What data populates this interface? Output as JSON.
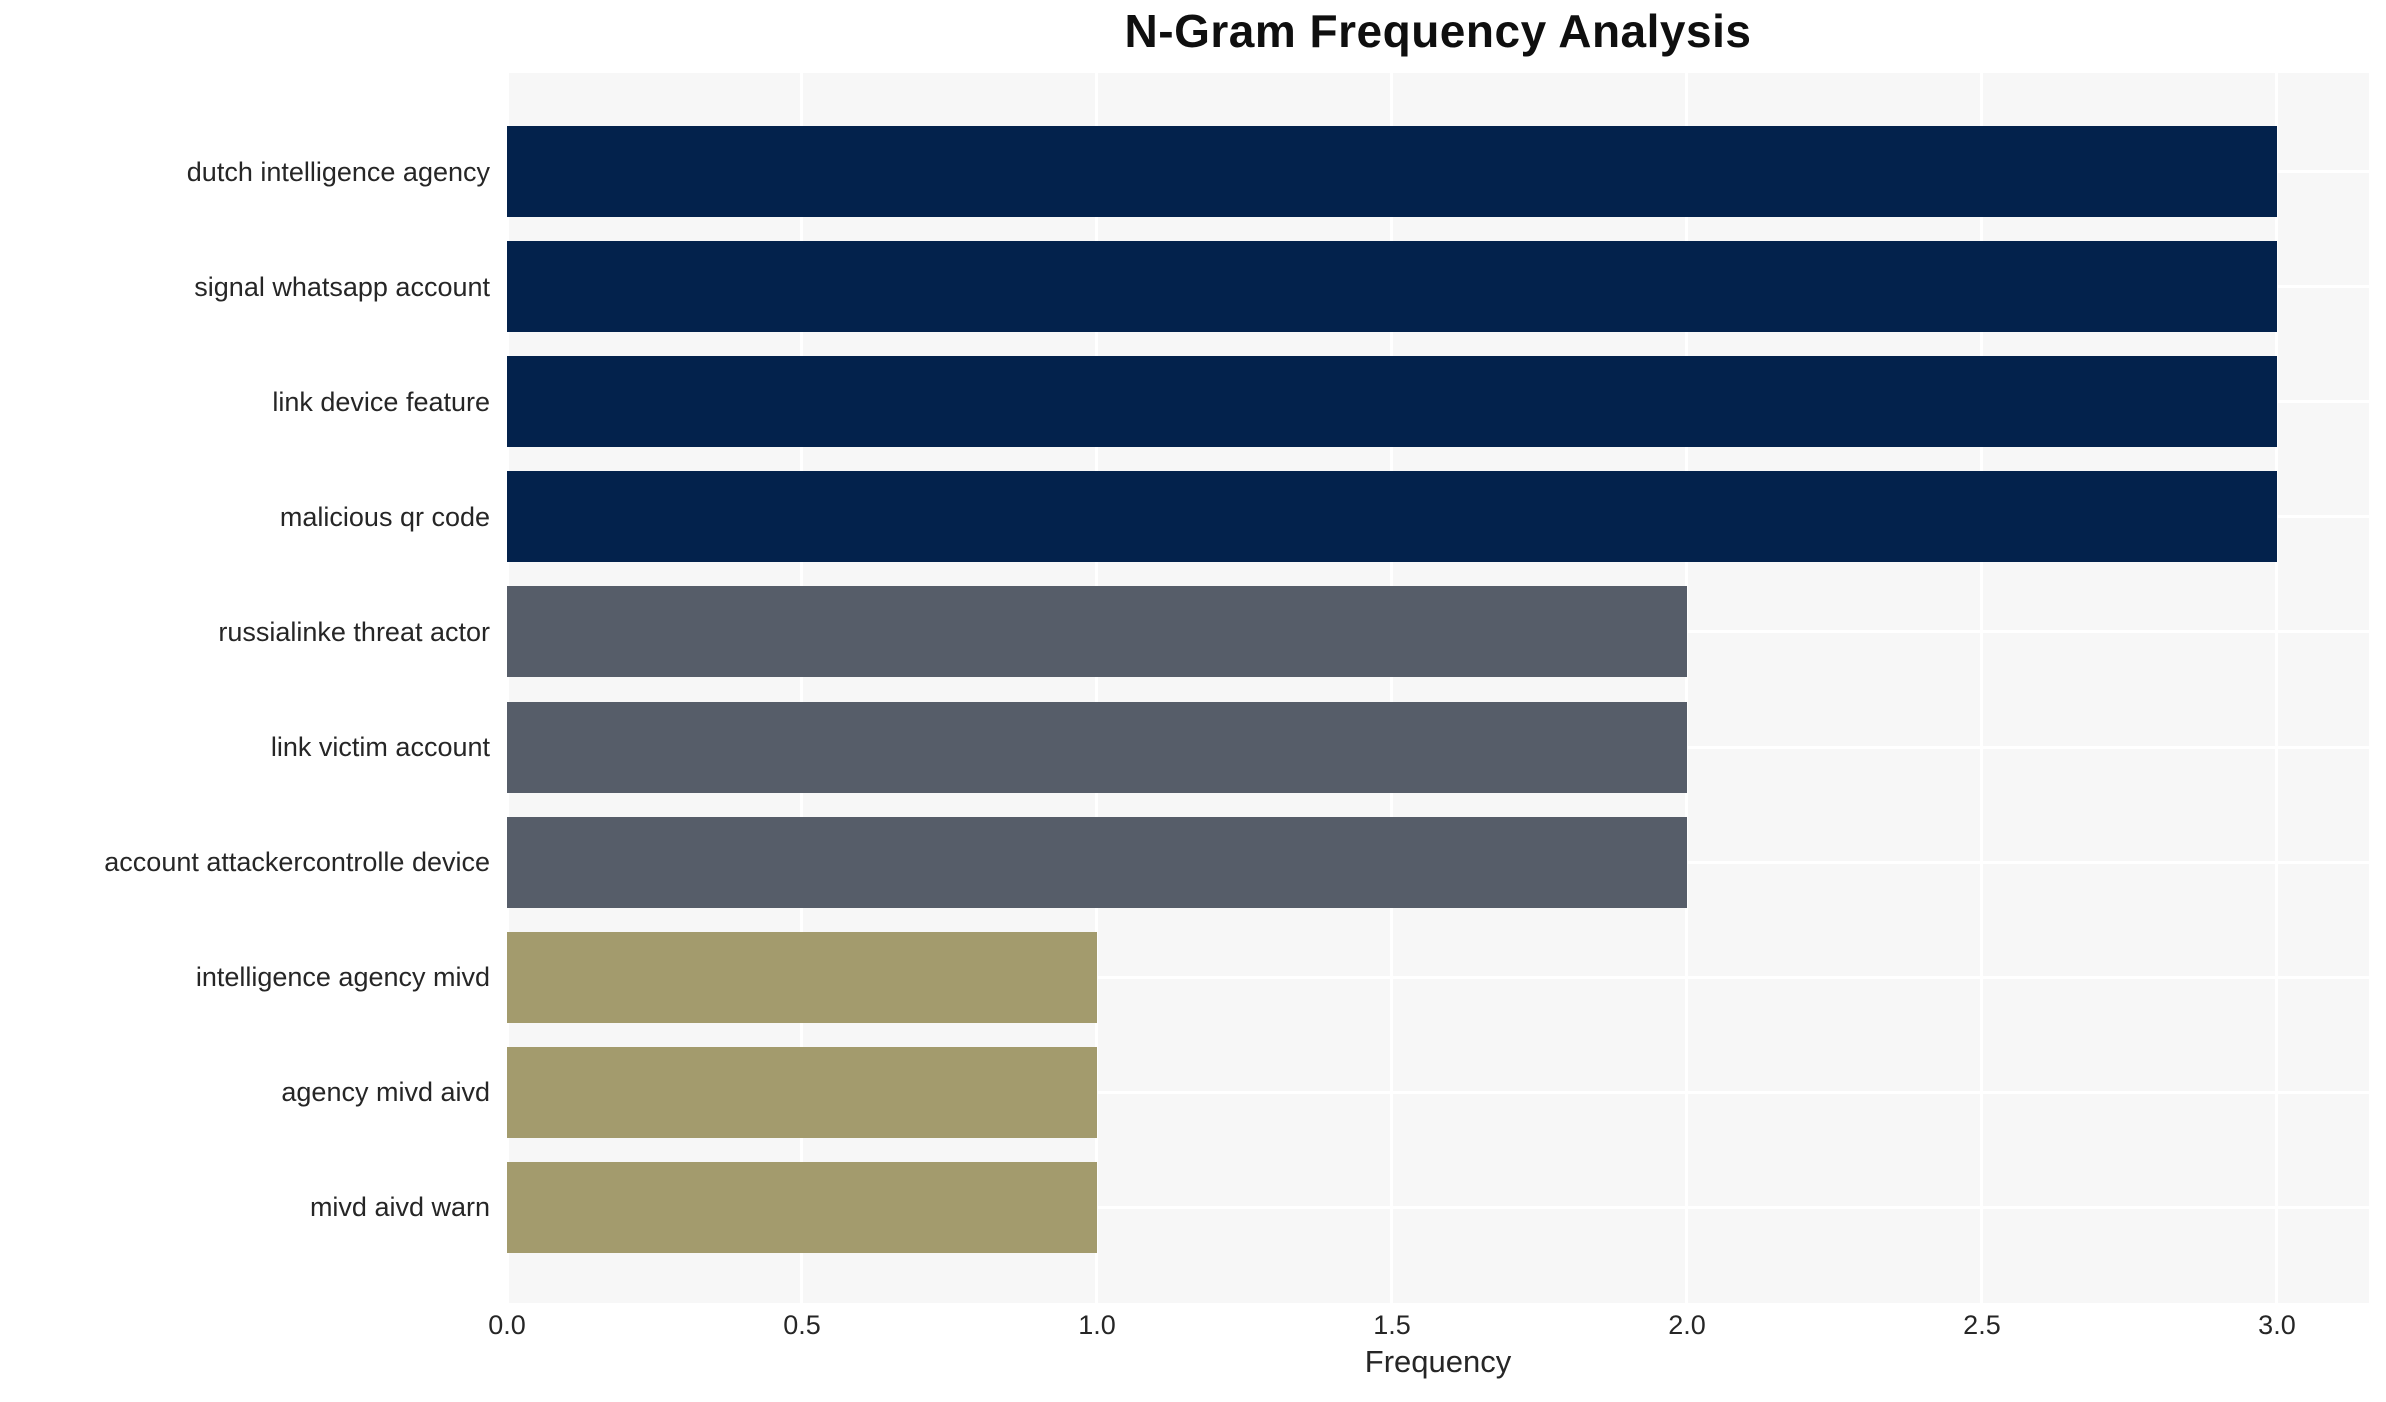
{
  "page": {
    "background_color": "#ffffff"
  },
  "chart_data": {
    "type": "bar",
    "orientation": "horizontal",
    "title": "N-Gram Frequency Analysis",
    "xlabel": "Frequency",
    "ylabel": "",
    "categories": [
      "dutch intelligence agency",
      "signal whatsapp account",
      "link device feature",
      "malicious qr code",
      "russialinke threat actor",
      "link victim account",
      "account attackercontrolle device",
      "intelligence agency mivd",
      "agency mivd aivd",
      "mivd aivd warn"
    ],
    "values": [
      3,
      3,
      3,
      3,
      2,
      2,
      2,
      1,
      1,
      1
    ],
    "bar_colors": [
      "#03224C",
      "#03224C",
      "#03224C",
      "#03224C",
      "#565D69",
      "#565D69",
      "#565D69",
      "#A39B6D",
      "#A39B6D",
      "#A39B6D"
    ],
    "x_ticks": [
      "0.0",
      "0.5",
      "1.0",
      "1.5",
      "2.0",
      "2.5",
      "3.0"
    ],
    "x_tick_values": [
      0,
      0.5,
      1.0,
      1.5,
      2.0,
      2.5,
      3.0
    ],
    "xlim": [
      0,
      3.156
    ],
    "grid": true,
    "legend": false,
    "plot_background": "#F7F7F7",
    "grid_color": "#FFFFFF",
    "text_color": "#262626"
  }
}
